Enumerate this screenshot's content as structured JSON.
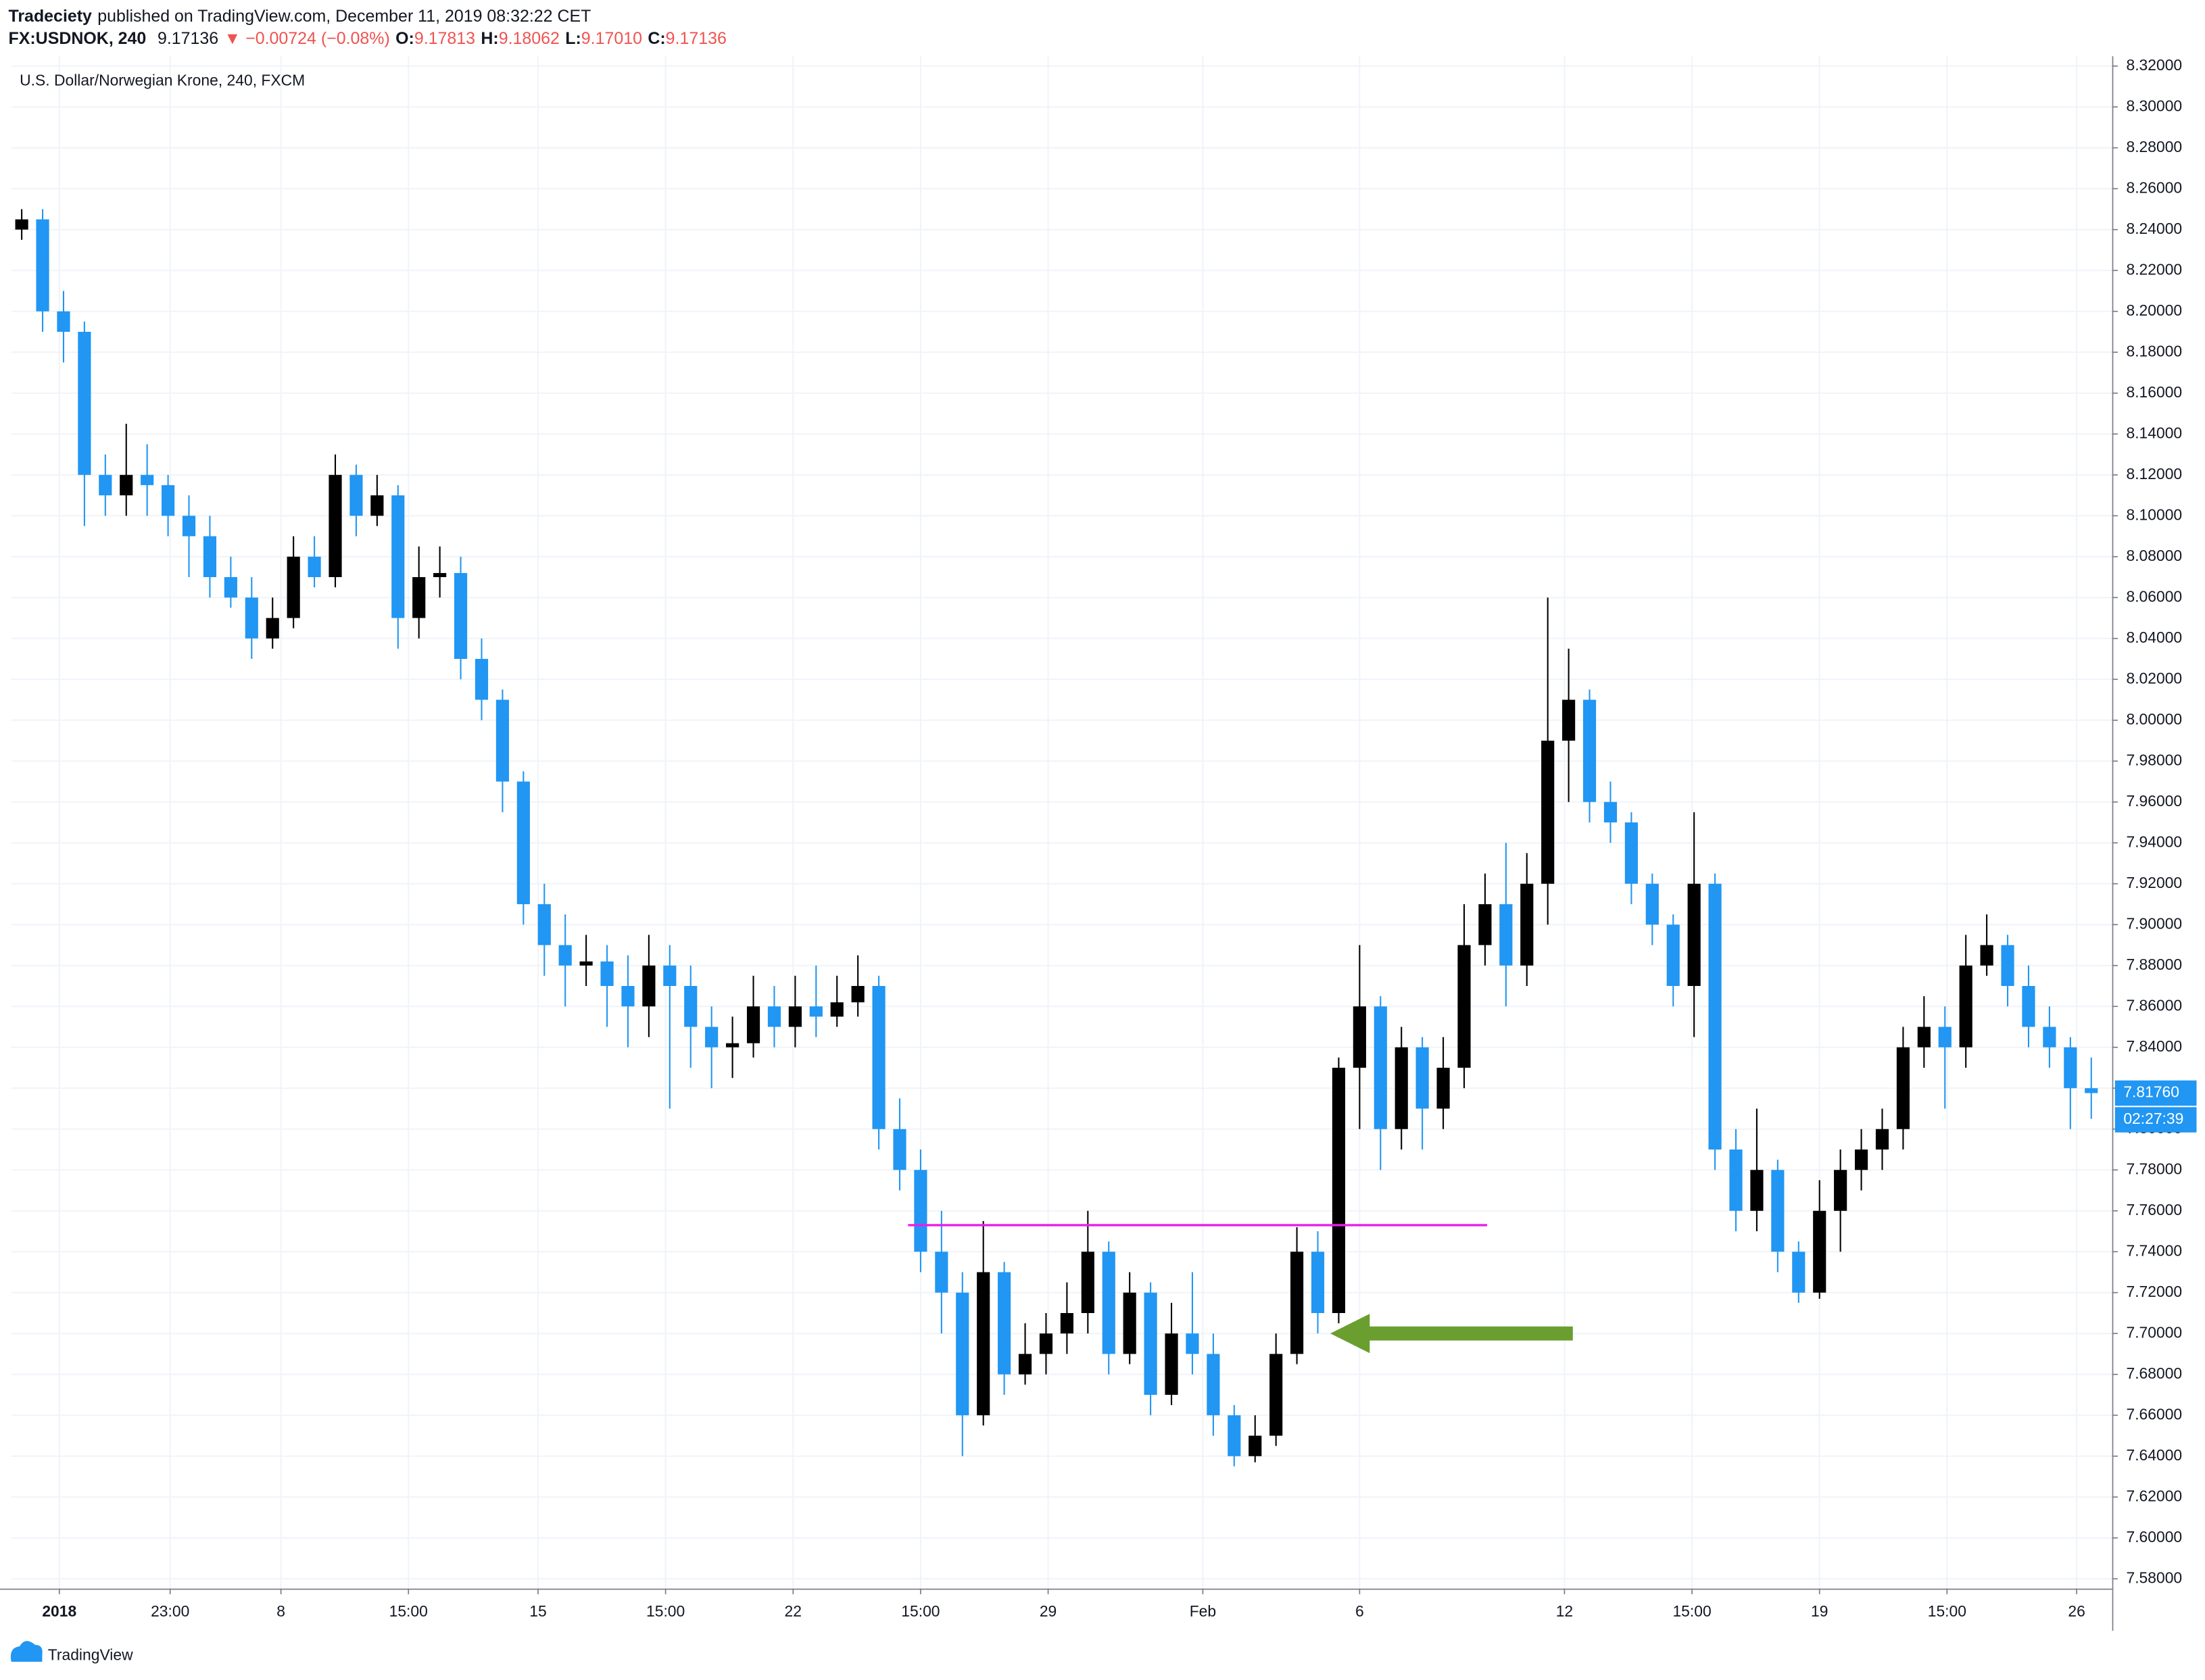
{
  "header": {
    "author": "Tradeciety",
    "published": "published on TradingView.com, December 11, 2019 08:32:22 CET",
    "symbol": "FX:USDNOK, 240",
    "last": "9.17136",
    "change": "▼ −0.00724 (−0.08%)",
    "ohlc": [
      {
        "label": "O:",
        "value": "9.17813"
      },
      {
        "label": "H:",
        "value": "9.18062"
      },
      {
        "label": "L:",
        "value": "9.17010"
      },
      {
        "label": "C:",
        "value": "9.17136"
      }
    ]
  },
  "footer": {
    "brand": "TradingView"
  },
  "chart_data": {
    "type": "candlestick",
    "title": "U.S. Dollar/Norwegian Krone, 240, FXCM",
    "up_color": "#000000",
    "down_color": "#2196f3",
    "grid": true,
    "grid_color": "#f0f3fa",
    "xlim": [
      -0.5,
      100
    ],
    "ylim": [
      7.5752,
      8.3248
    ],
    "xticks": [
      {
        "value": 1.8,
        "label": "2018"
      },
      {
        "value": 7.1,
        "label": "23:00"
      },
      {
        "value": 12.4,
        "label": "8"
      },
      {
        "value": 18.5,
        "label": "15:00"
      },
      {
        "value": 24.7,
        "label": "15"
      },
      {
        "value": 30.8,
        "label": "15:00"
      },
      {
        "value": 36.9,
        "label": "22"
      },
      {
        "value": 43.0,
        "label": "15:00"
      },
      {
        "value": 49.1,
        "label": "29"
      },
      {
        "value": 56.5,
        "label": "Feb"
      },
      {
        "value": 64.0,
        "label": "6"
      },
      {
        "value": 73.8,
        "label": "12"
      },
      {
        "value": 79.9,
        "label": "15:00"
      },
      {
        "value": 86.0,
        "label": "19"
      },
      {
        "value": 92.1,
        "label": "15:00"
      },
      {
        "value": 98.3,
        "label": "26"
      }
    ],
    "yticks": [
      {
        "value": 8.32,
        "label": "8.32000"
      },
      {
        "value": 8.3,
        "label": "8.30000"
      },
      {
        "value": 8.28,
        "label": "8.28000"
      },
      {
        "value": 8.26,
        "label": "8.26000"
      },
      {
        "value": 8.24,
        "label": "8.24000"
      },
      {
        "value": 8.22,
        "label": "8.22000"
      },
      {
        "value": 8.2,
        "label": "8.20000"
      },
      {
        "value": 8.18,
        "label": "8.18000"
      },
      {
        "value": 8.16,
        "label": "8.16000"
      },
      {
        "value": 8.14,
        "label": "8.14000"
      },
      {
        "value": 8.12,
        "label": "8.12000"
      },
      {
        "value": 8.1,
        "label": "8.10000"
      },
      {
        "value": 8.08,
        "label": "8.08000"
      },
      {
        "value": 8.06,
        "label": "8.06000"
      },
      {
        "value": 8.04,
        "label": "8.04000"
      },
      {
        "value": 8.02,
        "label": "8.02000"
      },
      {
        "value": 8.0,
        "label": "8.00000"
      },
      {
        "value": 7.98,
        "label": "7.98000"
      },
      {
        "value": 7.96,
        "label": "7.96000"
      },
      {
        "value": 7.94,
        "label": "7.94000"
      },
      {
        "value": 7.92,
        "label": "7.92000"
      },
      {
        "value": 7.9,
        "label": "7.90000"
      },
      {
        "value": 7.88,
        "label": "7.88000"
      },
      {
        "value": 7.86,
        "label": "7.86000"
      },
      {
        "value": 7.84,
        "label": "7.84000"
      },
      {
        "value": 7.82,
        "label": "7.82000"
      },
      {
        "value": 7.8,
        "label": "7.80000"
      },
      {
        "value": 7.78,
        "label": "7.78000"
      },
      {
        "value": 7.76,
        "label": "7.76000"
      },
      {
        "value": 7.74,
        "label": "7.74000"
      },
      {
        "value": 7.72,
        "label": "7.72000"
      },
      {
        "value": 7.7,
        "label": "7.70000"
      },
      {
        "value": 7.68,
        "label": "7.68000"
      },
      {
        "value": 7.66,
        "label": "7.66000"
      },
      {
        "value": 7.64,
        "label": "7.64000"
      },
      {
        "value": 7.62,
        "label": "7.62000"
      },
      {
        "value": 7.6,
        "label": "7.60000"
      },
      {
        "value": 7.58,
        "label": "7.58000"
      }
    ],
    "series": {
      "open": [
        8.24,
        8.245,
        8.2,
        8.19,
        8.12,
        8.11,
        8.12,
        8.115,
        8.1,
        8.09,
        8.07,
        8.06,
        8.04,
        8.05,
        8.08,
        8.07,
        8.12,
        8.1,
        8.11,
        8.05,
        8.07,
        8.072,
        8.03,
        8.01,
        7.97,
        7.91,
        7.89,
        7.88,
        7.882,
        7.87,
        7.86,
        7.88,
        7.87,
        7.85,
        7.84,
        7.842,
        7.86,
        7.85,
        7.86,
        7.855,
        7.862,
        7.87,
        7.8,
        7.78,
        7.74,
        7.72,
        7.66,
        7.73,
        7.68,
        7.69,
        7.7,
        7.71,
        7.74,
        7.69,
        7.72,
        7.67,
        7.7,
        7.69,
        7.66,
        7.64,
        7.65,
        7.69,
        7.74,
        7.71,
        7.83,
        7.86,
        7.8,
        7.84,
        7.81,
        7.83,
        7.89,
        7.91,
        7.88,
        7.92,
        7.99,
        8.01,
        7.96,
        7.95,
        7.92,
        7.9,
        7.87,
        7.92,
        7.79,
        7.76,
        7.78,
        7.74,
        7.72,
        7.76,
        7.78,
        7.79,
        7.8,
        7.84,
        7.85,
        7.84,
        7.88,
        7.89,
        7.87,
        7.85,
        7.84,
        7.82
      ],
      "high": [
        8.25,
        8.25,
        8.21,
        8.195,
        8.13,
        8.145,
        8.135,
        8.12,
        8.11,
        8.1,
        8.08,
        8.07,
        8.06,
        8.09,
        8.09,
        8.13,
        8.125,
        8.12,
        8.115,
        8.085,
        8.085,
        8.08,
        8.04,
        8.015,
        7.975,
        7.92,
        7.905,
        7.895,
        7.89,
        7.885,
        7.895,
        7.89,
        7.88,
        7.86,
        7.855,
        7.875,
        7.87,
        7.875,
        7.88,
        7.875,
        7.885,
        7.875,
        7.815,
        7.79,
        7.76,
        7.73,
        7.755,
        7.735,
        7.705,
        7.71,
        7.725,
        7.76,
        7.745,
        7.73,
        7.725,
        7.715,
        7.73,
        7.7,
        7.665,
        7.66,
        7.7,
        7.752,
        7.75,
        7.835,
        7.89,
        7.865,
        7.85,
        7.845,
        7.845,
        7.91,
        7.925,
        7.94,
        7.935,
        8.06,
        8.035,
        8.015,
        7.97,
        7.955,
        7.925,
        7.905,
        7.955,
        7.925,
        7.8,
        7.81,
        7.785,
        7.745,
        7.775,
        7.79,
        7.8,
        7.81,
        7.85,
        7.865,
        7.86,
        7.895,
        7.905,
        7.895,
        7.88,
        7.86,
        7.845,
        7.835
      ],
      "low": [
        8.235,
        8.19,
        8.175,
        8.095,
        8.1,
        8.1,
        8.1,
        8.09,
        8.07,
        8.06,
        8.055,
        8.03,
        8.035,
        8.045,
        8.065,
        8.065,
        8.09,
        8.095,
        8.035,
        8.04,
        8.06,
        8.02,
        8.0,
        7.955,
        7.9,
        7.875,
        7.86,
        7.87,
        7.85,
        7.84,
        7.845,
        7.81,
        7.83,
        7.82,
        7.825,
        7.835,
        7.84,
        7.84,
        7.845,
        7.85,
        7.855,
        7.79,
        7.77,
        7.73,
        7.7,
        7.64,
        7.655,
        7.67,
        7.675,
        7.68,
        7.69,
        7.7,
        7.68,
        7.685,
        7.66,
        7.665,
        7.68,
        7.65,
        7.635,
        7.637,
        7.645,
        7.685,
        7.7,
        7.705,
        7.8,
        7.78,
        7.79,
        7.79,
        7.8,
        7.82,
        7.88,
        7.86,
        7.87,
        7.9,
        7.96,
        7.95,
        7.94,
        7.91,
        7.89,
        7.86,
        7.845,
        7.78,
        7.75,
        7.75,
        7.73,
        7.715,
        7.717,
        7.74,
        7.77,
        7.78,
        7.79,
        7.83,
        7.81,
        7.83,
        7.875,
        7.86,
        7.84,
        7.83,
        7.8,
        7.805
      ],
      "close": [
        8.245,
        8.2,
        8.19,
        8.12,
        8.11,
        8.12,
        8.115,
        8.1,
        8.09,
        8.07,
        8.06,
        8.04,
        8.05,
        8.08,
        8.07,
        8.12,
        8.1,
        8.11,
        8.05,
        8.07,
        8.072,
        8.03,
        8.01,
        7.97,
        7.91,
        7.89,
        7.88,
        7.882,
        7.87,
        7.86,
        7.88,
        7.87,
        7.85,
        7.84,
        7.842,
        7.86,
        7.85,
        7.86,
        7.855,
        7.862,
        7.87,
        7.8,
        7.78,
        7.74,
        7.72,
        7.66,
        7.73,
        7.68,
        7.69,
        7.7,
        7.71,
        7.74,
        7.69,
        7.72,
        7.67,
        7.7,
        7.69,
        7.66,
        7.64,
        7.65,
        7.69,
        7.74,
        7.71,
        7.83,
        7.86,
        7.8,
        7.84,
        7.81,
        7.83,
        7.89,
        7.91,
        7.88,
        7.92,
        7.99,
        8.01,
        7.96,
        7.95,
        7.92,
        7.9,
        7.87,
        7.92,
        7.79,
        7.76,
        7.78,
        7.74,
        7.72,
        7.76,
        7.78,
        7.79,
        7.8,
        7.84,
        7.85,
        7.84,
        7.88,
        7.89,
        7.87,
        7.85,
        7.84,
        7.82,
        7.8176
      ]
    },
    "horizontal_line": {
      "value": 7.753,
      "x": [
        42.4,
        70.1
      ],
      "color": "#e91ee9"
    },
    "arrow": {
      "y": 7.7,
      "x": [
        62.6,
        74.2
      ],
      "color": "#6a9e2f"
    },
    "price_label": {
      "value": 7.8176,
      "label": "7.81760",
      "countdown": "02:27:39",
      "color": "#2196f3"
    }
  }
}
